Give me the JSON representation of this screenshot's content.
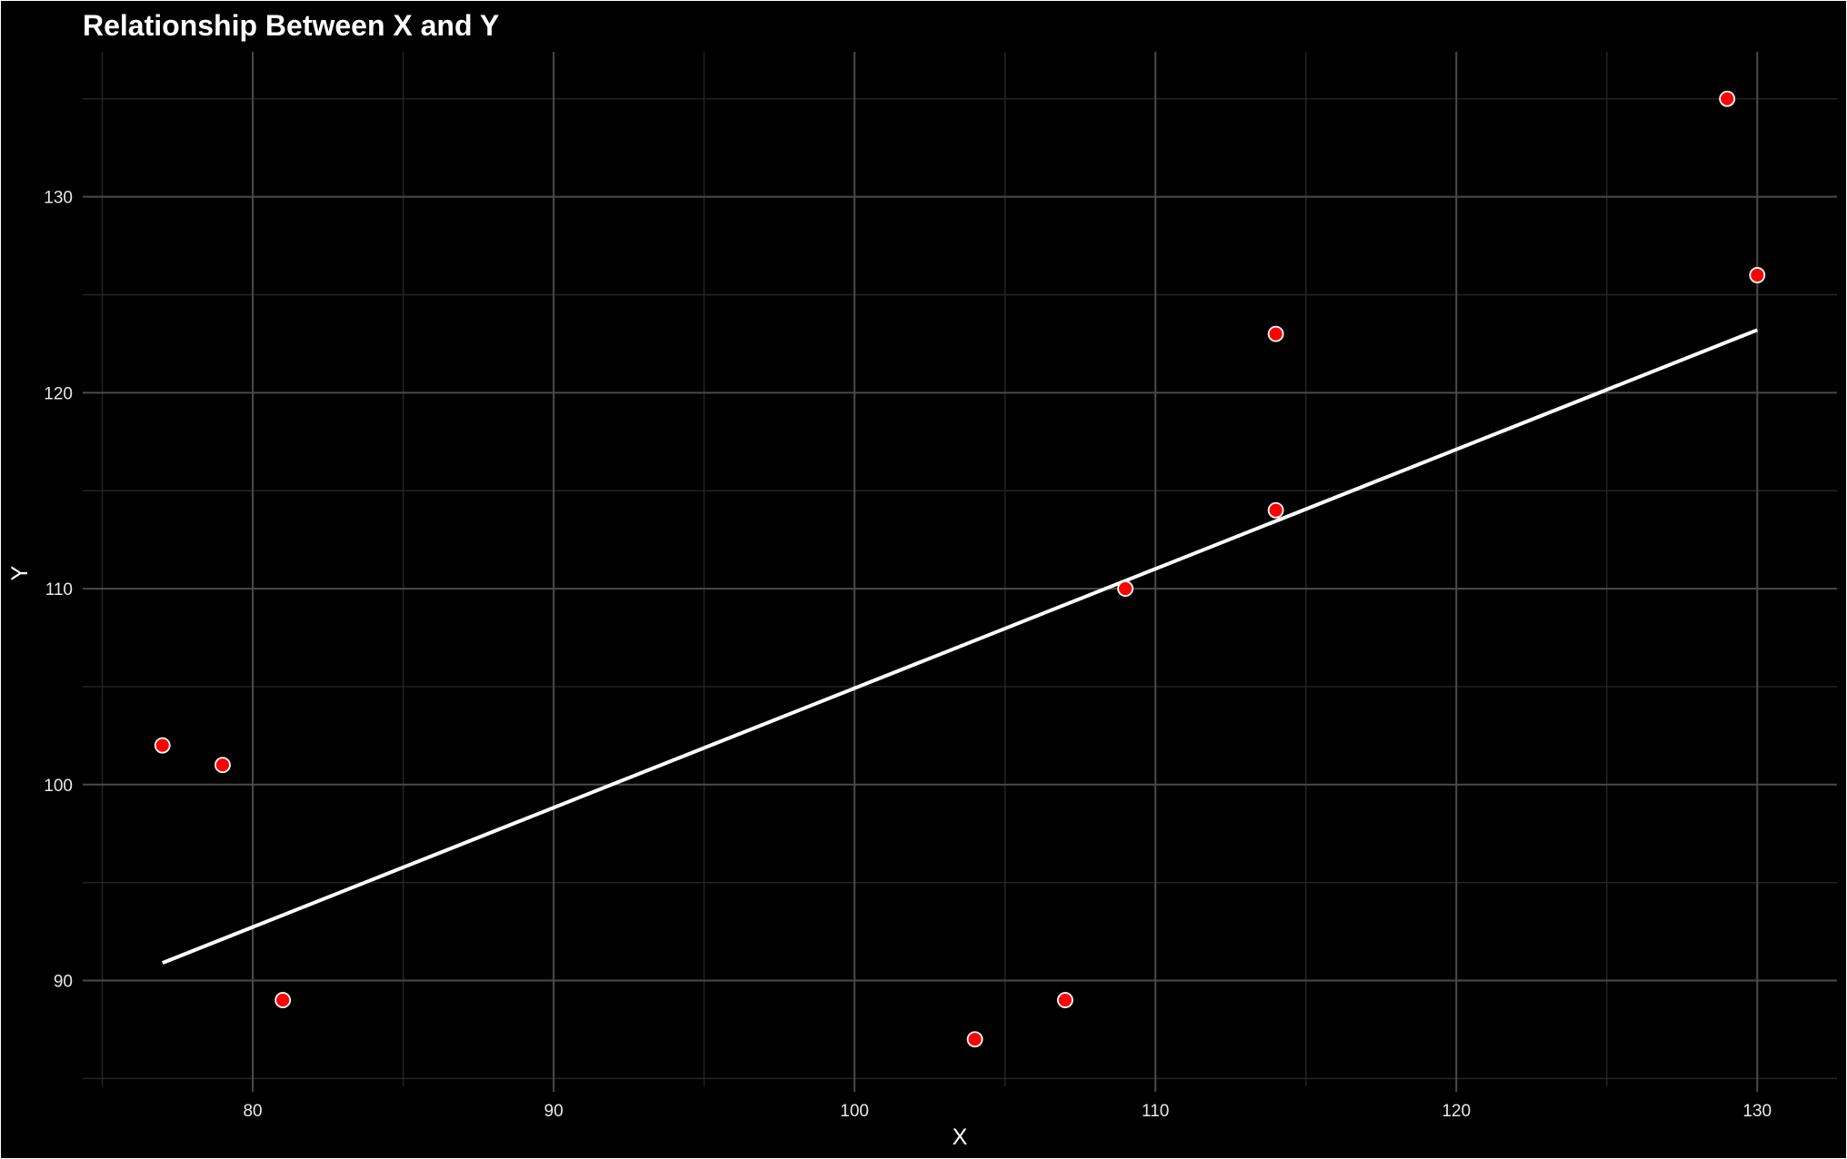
{
  "chart_data": {
    "type": "scatter",
    "title": "Relationship Between X and Y",
    "xlabel": "X",
    "ylabel": "Y",
    "xlim": [
      74.35,
      132.65
    ],
    "ylim": [
      84.6,
      137.4
    ],
    "x_major_ticks": [
      80,
      90,
      100,
      110,
      120,
      130
    ],
    "x_minor_ticks": [
      75,
      85,
      95,
      105,
      115,
      125
    ],
    "y_major_ticks": [
      90,
      100,
      110,
      120,
      130
    ],
    "y_minor_ticks": [
      85,
      95,
      105,
      115,
      125,
      135
    ],
    "grid": true,
    "legend": "none",
    "series": [
      {
        "points": [
          {
            "x": 77,
            "y": 102
          },
          {
            "x": 79,
            "y": 101
          },
          {
            "x": 81,
            "y": 89
          },
          {
            "x": 104,
            "y": 87
          },
          {
            "x": 107,
            "y": 89
          },
          {
            "x": 109,
            "y": 110
          },
          {
            "x": 114,
            "y": 123
          },
          {
            "x": 114,
            "y": 114
          },
          {
            "x": 129,
            "y": 135
          },
          {
            "x": 130,
            "y": 126
          }
        ],
        "color": "#ff0000"
      }
    ],
    "trend_line": {
      "type": "linear",
      "color": "#ffffff",
      "start": {
        "x": 77,
        "y": 90.9
      },
      "end": {
        "x": 130,
        "y": 123.2
      }
    }
  }
}
